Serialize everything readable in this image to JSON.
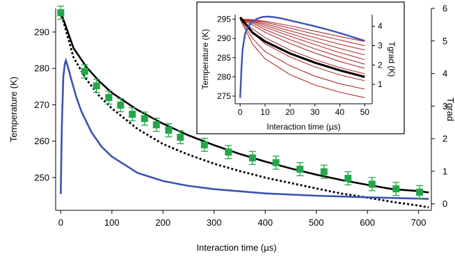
{
  "chart_data": [
    {
      "type": "line",
      "xlabel": "Interaction time (µs)",
      "ylabel": "Temperature (K)",
      "y2label": "Tgrad",
      "xlim": [
        -10,
        725
      ],
      "ylim": [
        241,
        296.5
      ],
      "y2lim": [
        -0.2,
        6.0
      ],
      "xticks": [
        0,
        100,
        200,
        300,
        400,
        500,
        600,
        700
      ],
      "yticks": [
        250,
        260,
        270,
        280,
        290
      ],
      "y2ticks": [
        0,
        1,
        2,
        3,
        4,
        5,
        6
      ],
      "grid": false,
      "series": [
        {
          "kind": "scatter",
          "axis": "left",
          "color": "#22a84a",
          "marker": "square",
          "error_bars": true,
          "x": [
            0,
            47,
            70,
            94,
            117,
            140,
            164,
            187,
            211,
            234,
            281,
            328,
            375,
            421,
            468,
            515,
            562,
            609,
            656,
            702
          ],
          "y": [
            295.3,
            279.2,
            275.2,
            272.0,
            269.9,
            267.4,
            266.2,
            264.5,
            263.0,
            261.1,
            259.0,
            257.0,
            255.4,
            254.1,
            252.3,
            251.6,
            249.8,
            248.2,
            246.9,
            246.0
          ],
          "err": [
            1.8,
            1.8,
            1.8,
            1.8,
            1.8,
            1.8,
            1.8,
            1.8,
            1.8,
            1.8,
            1.8,
            1.8,
            1.8,
            1.8,
            1.8,
            1.8,
            1.8,
            1.8,
            1.8,
            1.8
          ]
        },
        {
          "kind": "line",
          "axis": "left",
          "color": "#000000",
          "style": "solid",
          "x": [
            0,
            25,
            50,
            75,
            100,
            150,
            200,
            250,
            300,
            350,
            400,
            450,
            500,
            550,
            600,
            650,
            700,
            720
          ],
          "y": [
            295.5,
            285.6,
            280.4,
            276.5,
            273.3,
            268.6,
            264.8,
            261.6,
            258.9,
            256.5,
            254.4,
            252.5,
            250.8,
            249.3,
            248.0,
            246.8,
            246.3,
            245.9
          ]
        },
        {
          "kind": "line",
          "axis": "left",
          "color": "#000000",
          "style": "dotted",
          "x": [
            0,
            25,
            50,
            75,
            100,
            150,
            200,
            250,
            300,
            350,
            400,
            450,
            500,
            550,
            600,
            650,
            700,
            720
          ],
          "y": [
            295.5,
            283.0,
            277.0,
            272.5,
            269.0,
            263.4,
            259.2,
            256.3,
            253.8,
            251.8,
            250.0,
            248.5,
            247.0,
            245.6,
            244.5,
            243.3,
            242.3,
            241.8
          ]
        },
        {
          "kind": "line",
          "axis": "right",
          "color": "#3a53b0",
          "style": "solid",
          "x": [
            0,
            2,
            5,
            8,
            10,
            15,
            20,
            30,
            40,
            60,
            80,
            100,
            150,
            200,
            250,
            300,
            400,
            500,
            600,
            720
          ],
          "y": [
            0.3,
            2.3,
            3.9,
            4.3,
            4.4,
            4.15,
            3.85,
            3.3,
            2.85,
            2.2,
            1.75,
            1.45,
            0.95,
            0.7,
            0.55,
            0.45,
            0.32,
            0.25,
            0.2,
            0.15
          ]
        }
      ]
    },
    {
      "type": "line",
      "xlabel": "Interaction time (µs)",
      "ylabel": "Temperature (K)",
      "y2label": "Tgrad (K)",
      "xlim": [
        -2,
        53
      ],
      "ylim": [
        273,
        296.2
      ],
      "y2lim": [
        0,
        4.6
      ],
      "xticks": [
        0,
        10,
        20,
        30,
        40,
        50
      ],
      "yticks": [
        275,
        280,
        285,
        290,
        295
      ],
      "y2ticks": [
        1,
        2,
        3,
        4
      ],
      "grid": false,
      "series": [
        {
          "kind": "line",
          "axis": "left",
          "color": "#b03030",
          "x": [
            0,
            5,
            10,
            20,
            30,
            40,
            50
          ],
          "y": [
            [
              295,
              294.9,
              294.5,
              293.3,
              291.9,
              290.5,
              289.2
            ],
            [
              295,
              294.8,
              294.2,
              292.7,
              291.1,
              289.6,
              288.1
            ],
            [
              295,
              294.7,
              293.8,
              292.0,
              290.2,
              288.5,
              287.0
            ],
            [
              295,
              294.5,
              293.4,
              291.3,
              289.3,
              287.4,
              285.7
            ],
            [
              295,
              294.3,
              292.9,
              290.6,
              288.4,
              286.3,
              284.5
            ],
            [
              295,
              294.0,
              292.3,
              289.7,
              287.3,
              285.2,
              283.3
            ],
            [
              295,
              293.5,
              291.6,
              288.7,
              286.2,
              284.0,
              282.2
            ],
            [
              295,
              292.5,
              290.2,
              287.0,
              284.5,
              282.4,
              280.8
            ],
            [
              295,
              291.5,
              288.6,
              285.2,
              282.6,
              280.5,
              279.0
            ],
            [
              295,
              290.0,
              286.6,
              282.9,
              280.2,
              278.2,
              276.8
            ],
            [
              295,
              288.5,
              284.7,
              280.6,
              277.9,
              276.0,
              274.6
            ]
          ]
        },
        {
          "kind": "line",
          "axis": "left",
          "color": "#000000",
          "style": "thick",
          "x": [
            0,
            5,
            10,
            20,
            30,
            40,
            50
          ],
          "y": [
            295.5,
            291.5,
            289.2,
            286.1,
            283.7,
            281.7,
            280.0
          ]
        },
        {
          "kind": "line",
          "axis": "right",
          "color": "#3a53b0",
          "x": [
            0,
            0.5,
            1,
            2,
            3,
            5,
            7,
            9,
            11,
            13,
            16,
            20,
            25,
            30,
            35,
            40,
            45,
            50
          ],
          "y": [
            0.3,
            1.8,
            2.8,
            3.6,
            3.95,
            4.25,
            4.4,
            4.48,
            4.5,
            4.48,
            4.42,
            4.3,
            4.15,
            4.0,
            3.83,
            3.65,
            3.45,
            3.25
          ]
        }
      ]
    }
  ]
}
